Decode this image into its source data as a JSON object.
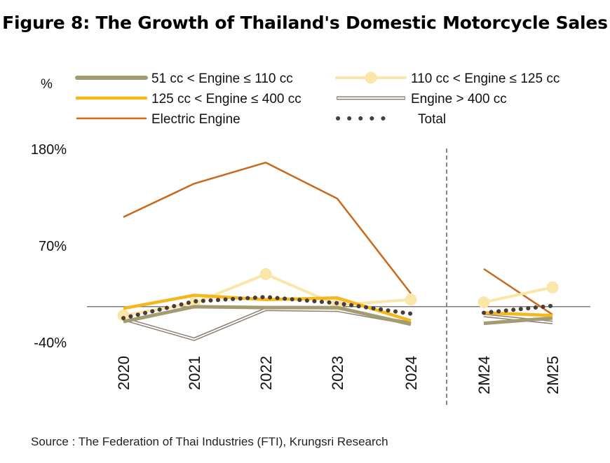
{
  "title": "Figure 8: The Growth of Thailand's Domestic Motorcycle Sales",
  "source": "Source : The Federation of Thai Industries (FTI), Krungsri Research",
  "chart_data": {
    "type": "line",
    "ylabel": "%",
    "ylim": [
      -40,
      180
    ],
    "yticks": [
      "180%",
      "70%",
      "-40%"
    ],
    "ytick_values": [
      180,
      70,
      -40
    ],
    "categories": [
      "2020",
      "2021",
      "2022",
      "2023",
      "2024",
      "2M24",
      "2M25"
    ],
    "group_break_after": "2024",
    "zero_line": true,
    "legend_placement": "top",
    "series": [
      {
        "name": "51 cc < Engine ≤ 110 cc",
        "color": "#a39c72",
        "style": "thick",
        "values": [
          -17,
          0,
          -1,
          -1,
          -20,
          -19,
          -13
        ]
      },
      {
        "name": "110 cc < Engine ≤ 125 cc",
        "color": "#fbe6a9",
        "style": "marker",
        "values": [
          -10,
          4,
          37,
          2,
          8,
          5,
          22
        ]
      },
      {
        "name": "125 cc < Engine ≤ 400 cc",
        "color": "#f5b81c",
        "style": "medium",
        "values": [
          -2,
          13,
          8,
          10,
          -16,
          -7,
          -10
        ]
      },
      {
        "name": "Engine > 400 cc",
        "color": "#8e7e74",
        "style": "outline",
        "values": [
          -14,
          -37,
          -3,
          -4,
          -19,
          -10,
          -18
        ]
      },
      {
        "name": "Electric Engine",
        "color": "#c8691c",
        "style": "thin",
        "values": [
          102,
          140,
          164,
          123,
          15,
          43,
          -9
        ]
      },
      {
        "name": "Total",
        "color": "#4a3d38",
        "style": "dotted",
        "values": [
          -13,
          6,
          11,
          4,
          -8,
          -7,
          1
        ]
      }
    ]
  }
}
